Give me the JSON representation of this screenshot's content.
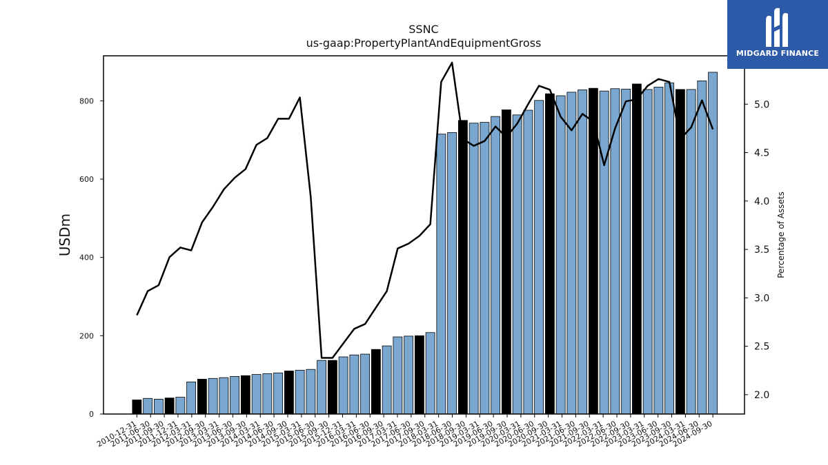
{
  "brand": {
    "name": "MIDGARD FINANCE",
    "color": "#2d5aa8"
  },
  "chart_data": {
    "type": "bar",
    "title": "SSNC",
    "subtitle": "us-gaap:PropertyPlantAndEquipmentGross",
    "ylabel": "USDm",
    "y2label": "Percentage of Assets",
    "ylim": [
      0,
      915
    ],
    "y2lim": [
      1.8,
      5.5
    ],
    "yticks": [
      0,
      200,
      400,
      600,
      800
    ],
    "y2ticks": [
      "2.0",
      "2.5",
      "3.0",
      "3.5",
      "4.0",
      "4.5",
      "5.0"
    ],
    "bar_color_default": "#7aa7cf",
    "bar_color_q4": "#000000",
    "line_color": "#000000",
    "x_tick_labels": [
      "2010-12-31",
      "2011-06-30",
      "2011-09-30",
      "2011-12-31",
      "2012-03-31",
      "2012-09-30",
      "2013-03-31",
      "2013-06-30",
      "2013-09-30",
      "2014-03-31",
      "2014-06-30",
      "2014-09-30",
      "2015-03-31",
      "2015-06-30",
      "2015-09-30",
      "2015-12-31",
      "2016-03-31",
      "2016-06-30",
      "2016-09-30",
      "2017-03-31",
      "2017-06-30",
      "2017-09-30",
      "2018-03-31",
      "2018-06-30",
      "2018-09-30",
      "2019-03-31",
      "2019-06-30",
      "2019-09-30",
      "2020-03-31",
      "2020-06-30",
      "2020-09-30",
      "2021-03-31",
      "2021-06-30",
      "2021-09-30",
      "2022-03-31",
      "2022-06-30",
      "2022-09-30",
      "2023-03-31",
      "2023-06-30",
      "2023-09-30",
      "2024-03-31",
      "2024-06-30",
      "2024-09-30"
    ],
    "bars": [
      {
        "value": 36,
        "q4": true
      },
      {
        "value": 40,
        "q4": false
      },
      {
        "value": 38,
        "q4": false
      },
      {
        "value": 41,
        "q4": true
      },
      {
        "value": 43,
        "q4": false
      },
      {
        "value": 82,
        "q4": false
      },
      {
        "value": 89,
        "q4": true
      },
      {
        "value": 91,
        "q4": false
      },
      {
        "value": 93,
        "q4": false
      },
      {
        "value": 96,
        "q4": false
      },
      {
        "value": 98,
        "q4": true
      },
      {
        "value": 101,
        "q4": false
      },
      {
        "value": 103,
        "q4": false
      },
      {
        "value": 105,
        "q4": false
      },
      {
        "value": 110,
        "q4": true
      },
      {
        "value": 112,
        "q4": false
      },
      {
        "value": 114,
        "q4": false
      },
      {
        "value": 137,
        "q4": false
      },
      {
        "value": 137,
        "q4": true
      },
      {
        "value": 146,
        "q4": false
      },
      {
        "value": 151,
        "q4": false
      },
      {
        "value": 153,
        "q4": false
      },
      {
        "value": 165,
        "q4": true
      },
      {
        "value": 174,
        "q4": false
      },
      {
        "value": 197,
        "q4": false
      },
      {
        "value": 199,
        "q4": false
      },
      {
        "value": 200,
        "q4": true
      },
      {
        "value": 208,
        "q4": false
      },
      {
        "value": 715,
        "q4": false
      },
      {
        "value": 719,
        "q4": false
      },
      {
        "value": 750,
        "q4": true
      },
      {
        "value": 743,
        "q4": false
      },
      {
        "value": 745,
        "q4": false
      },
      {
        "value": 760,
        "q4": false
      },
      {
        "value": 777,
        "q4": true
      },
      {
        "value": 764,
        "q4": false
      },
      {
        "value": 776,
        "q4": false
      },
      {
        "value": 801,
        "q4": false
      },
      {
        "value": 818,
        "q4": true
      },
      {
        "value": 813,
        "q4": false
      },
      {
        "value": 822,
        "q4": false
      },
      {
        "value": 828,
        "q4": false
      },
      {
        "value": 832,
        "q4": true
      },
      {
        "value": 825,
        "q4": false
      },
      {
        "value": 831,
        "q4": false
      },
      {
        "value": 830,
        "q4": false
      },
      {
        "value": 843,
        "q4": true
      },
      {
        "value": 829,
        "q4": false
      },
      {
        "value": 835,
        "q4": false
      },
      {
        "value": 846,
        "q4": false
      },
      {
        "value": 829,
        "q4": true
      },
      {
        "value": 829,
        "q4": false
      },
      {
        "value": 851,
        "q4": false
      },
      {
        "value": 873,
        "q4": false
      }
    ],
    "line_values": [
      2.82,
      3.07,
      3.13,
      3.42,
      3.52,
      3.49,
      3.78,
      3.94,
      4.12,
      4.24,
      4.33,
      4.58,
      4.65,
      4.85,
      4.85,
      5.07,
      4.04,
      2.38,
      2.38,
      2.53,
      2.68,
      2.73,
      2.9,
      3.07,
      3.51,
      3.56,
      3.64,
      3.76,
      5.23,
      5.43,
      4.64,
      4.57,
      4.62,
      4.77,
      4.66,
      4.8,
      5.0,
      5.19,
      5.15,
      4.87,
      4.73,
      4.9,
      4.82,
      4.37,
      4.75,
      5.03,
      5.05,
      5.19,
      5.26,
      5.23,
      4.64,
      4.76,
      5.04,
      4.74
    ]
  }
}
